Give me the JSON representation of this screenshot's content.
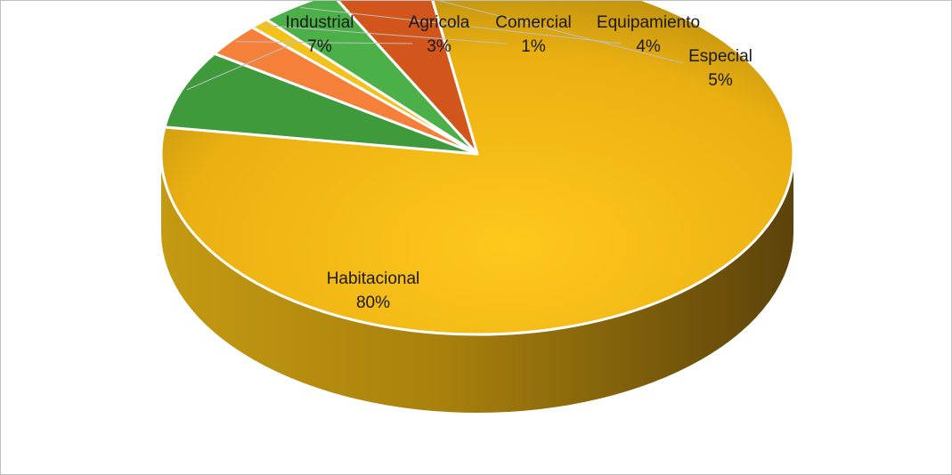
{
  "chart_data": {
    "type": "pie",
    "variant": "3d",
    "slices": [
      {
        "label": "Habitacional",
        "value": 80,
        "pct_label": "80%",
        "color": "#f5b800"
      },
      {
        "label": "Industrial",
        "value": 7,
        "pct_label": "7%",
        "color": "#3f9a3c"
      },
      {
        "label": "Agricola",
        "value": 3,
        "pct_label": "3%",
        "color": "#f4803a"
      },
      {
        "label": "Comercial",
        "value": 1,
        "pct_label": "1%",
        "color": "#f2c21a"
      },
      {
        "label": "Equipamiento",
        "value": 4,
        "pct_label": "4%",
        "color": "#4cb048"
      },
      {
        "label": "Especial",
        "value": 5,
        "pct_label": "5%",
        "color": "#d2561c"
      }
    ],
    "legend": "none",
    "data_labels": "category and percentage"
  }
}
